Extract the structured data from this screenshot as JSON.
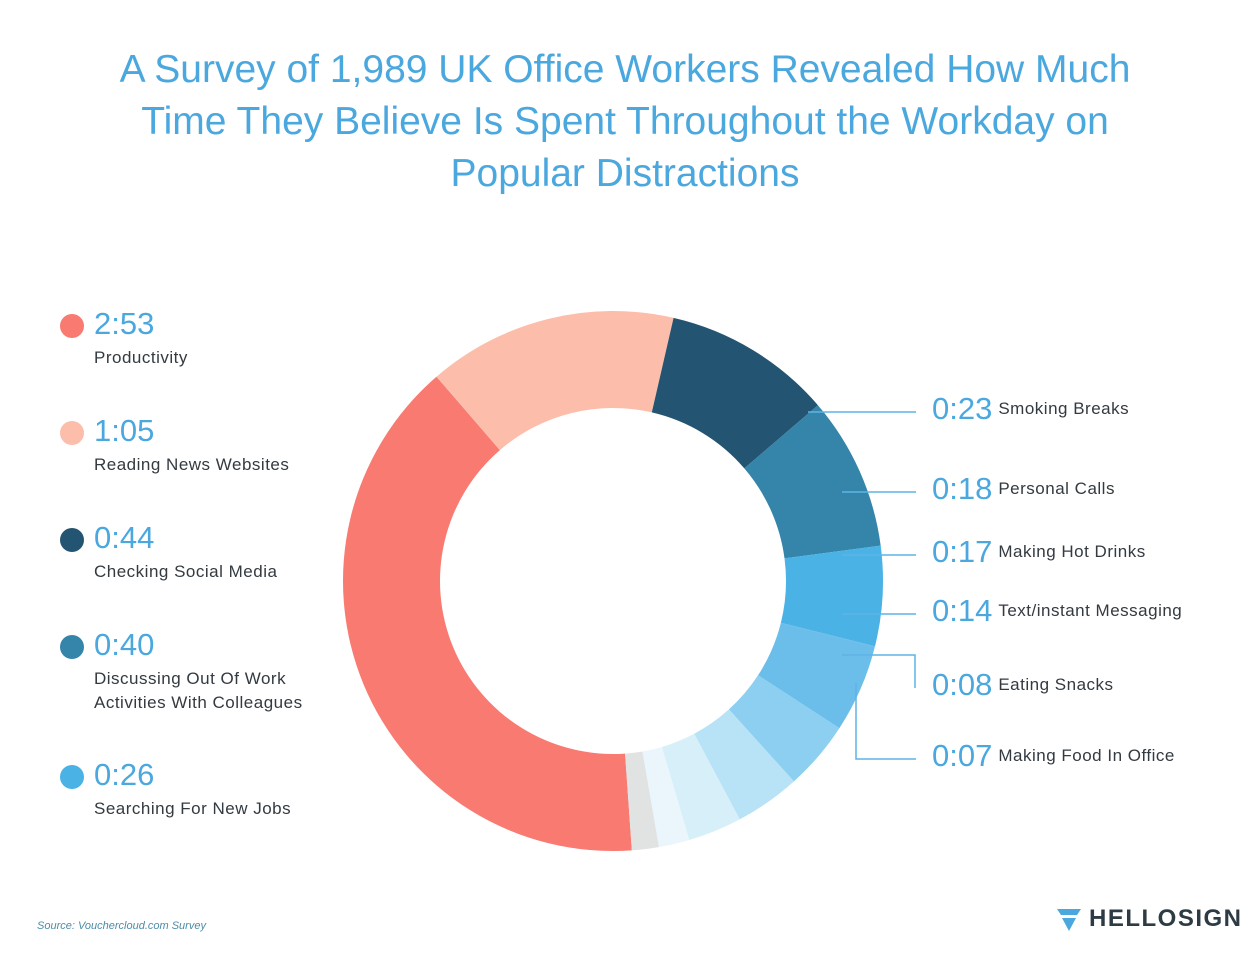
{
  "title": "A Survey of 1,989 UK Office Workers Revealed How Much Time They Believe Is Spent Throughout the Workday on Popular Distractions",
  "title_lines": [
    "A Survey of 1,989 UK Office Workers Revealed How Much",
    "Time They Believe Is Spent Throughout the Workday on",
    "Popular Distractions"
  ],
  "source": "Source: Vouchercloud.com Survey",
  "logo": {
    "text": "HELLOSIGN",
    "icon": "hellosign-logo-icon",
    "color": "#4aa8df"
  },
  "colors": {
    "value_text": "#4aa8df",
    "label_text": "#333a40",
    "callout_line": "#5db4e6"
  },
  "chart_data": {
    "type": "pie",
    "variant": "donut",
    "unit": "h:mm",
    "title": "A Survey of 1,989 UK Office Workers Revealed How Much Time They Believe Is Spent Throughout the Workday on Popular Distractions",
    "slices": [
      {
        "label": "Productivity",
        "label_lines": [
          "Productivity"
        ],
        "display": "2:53",
        "minutes": 173,
        "color": "#f87a70"
      },
      {
        "label": "Reading News Websites",
        "label_lines": [
          "Reading News Websites"
        ],
        "display": "1:05",
        "minutes": 65,
        "color": "#fdbdab"
      },
      {
        "label": "Checking Social Media",
        "label_lines": [
          "Checking Social Media"
        ],
        "display": "0:44",
        "minutes": 44,
        "color": "#235471"
      },
      {
        "label": "Discussing Out Of Work Activities With Colleagues",
        "label_lines": [
          "Discussing Out Of Work",
          "Activities With Colleagues"
        ],
        "display": "0:40",
        "minutes": 40,
        "color": "#3584aa"
      },
      {
        "label": "Searching For New Jobs",
        "label_lines": [
          "Searching For New Jobs"
        ],
        "display": "0:26",
        "minutes": 26,
        "color": "#4bb2e6"
      },
      {
        "label": "Smoking Breaks",
        "label_lines": [
          "Smoking Breaks"
        ],
        "display": "0:23",
        "minutes": 23,
        "color": "#6cbeea"
      },
      {
        "label": "Personal Calls",
        "label_lines": [
          "Personal Calls"
        ],
        "display": "0:18",
        "minutes": 18,
        "color": "#8ccff0"
      },
      {
        "label": "Making Hot Drinks",
        "label_lines": [
          "Making Hot Drinks"
        ],
        "display": "0:17",
        "minutes": 17,
        "color": "#b8e2f6"
      },
      {
        "label": "Text/instant Messaging",
        "label_lines": [
          "Text/instant Messaging"
        ],
        "display": "0:14",
        "minutes": 14,
        "color": "#d7eff9"
      },
      {
        "label": "Eating Snacks",
        "label_lines": [
          "Eating Snacks"
        ],
        "display": "0:08",
        "minutes": 8,
        "color": "#eaf6fc"
      },
      {
        "label": "Making Food In Office",
        "label_lines": [
          "Making Food In Office"
        ],
        "display": "0:07",
        "minutes": 7,
        "color": "#e1e2e2"
      }
    ],
    "legend_placement": "left"
  }
}
